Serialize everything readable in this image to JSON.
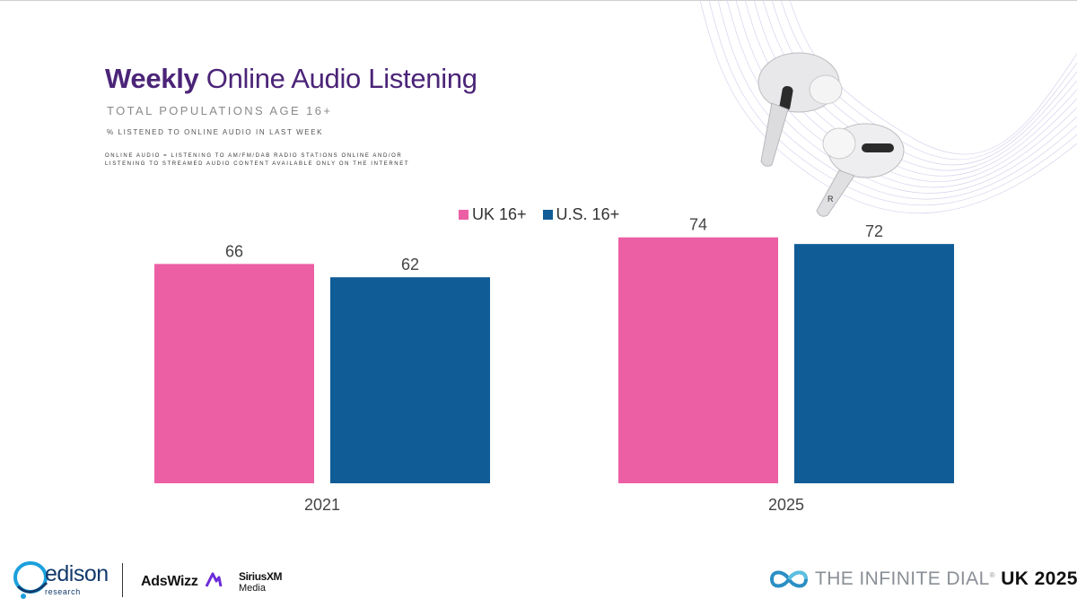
{
  "header": {
    "title_bold": "Weekly",
    "title_rest": " Online Audio Listening",
    "subtitle": "TOTAL POPULATIONS AGE 16+",
    "note": "% LISTENED TO ONLINE AUDIO IN LAST WEEK",
    "definition_line1": "ONLINE AUDIO = LISTENING TO AM/FM/DAB RADIO STATIONS ONLINE AND/OR",
    "definition_line2": "LISTENING TO STREAMED AUDIO CONTENT AVAILABLE ONLY ON THE INTERNET"
  },
  "chart_data": {
    "type": "bar",
    "categories": [
      "2021",
      "2025"
    ],
    "series": [
      {
        "name": "UK 16+",
        "values": [
          66,
          74
        ],
        "color": "#ec5fa4"
      },
      {
        "name": "U.S. 16+",
        "values": [
          62,
          72
        ],
        "color": "#0f5c97"
      }
    ],
    "ylim": [
      0,
      80
    ],
    "grid": false,
    "legend": "top-center"
  },
  "footer": {
    "edison_name": "edison",
    "edison_sub": "research",
    "adswizz": "AdsWizz",
    "sirius_line1": "SiriusXM",
    "sirius_line2": "Media",
    "dial_prefix": "THE INFINITE DIAL",
    "dial_reg": "®",
    "dial_suffix": "UK 2025",
    "icons": [
      "edison-logo-icon",
      "adswizz-mark-icon",
      "infinity-icon",
      "earbuds-image"
    ]
  }
}
